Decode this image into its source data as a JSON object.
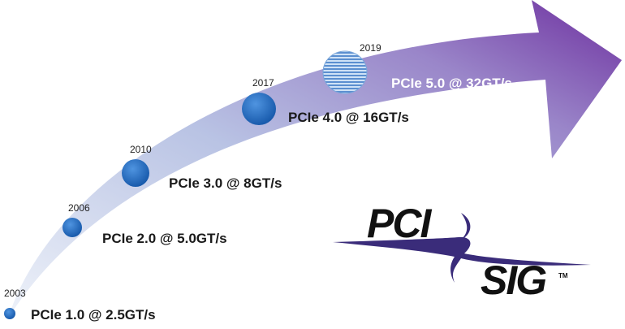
{
  "milestones": [
    {
      "year": "2003",
      "label": "PCIe 1.0 @ 2.5GT/s"
    },
    {
      "year": "2006",
      "label": "PCIe 2.0 @ 5.0GT/s"
    },
    {
      "year": "2010",
      "label": "PCIe 3.0 @ 8GT/s"
    },
    {
      "year": "2017",
      "label": "PCIe 4.0 @ 16GT/s"
    },
    {
      "year": "2019",
      "label": "PCIe 5.0 @ 32GT/s"
    }
  ],
  "logo": {
    "line1": "PCI",
    "line2": "SIG",
    "tm": "TM"
  },
  "colors": {
    "arrow_start": "#dfe6f3",
    "arrow_end": "#7a3fa6",
    "dot": "#1d63b7",
    "logo_swoosh": "#3a2c7a"
  }
}
